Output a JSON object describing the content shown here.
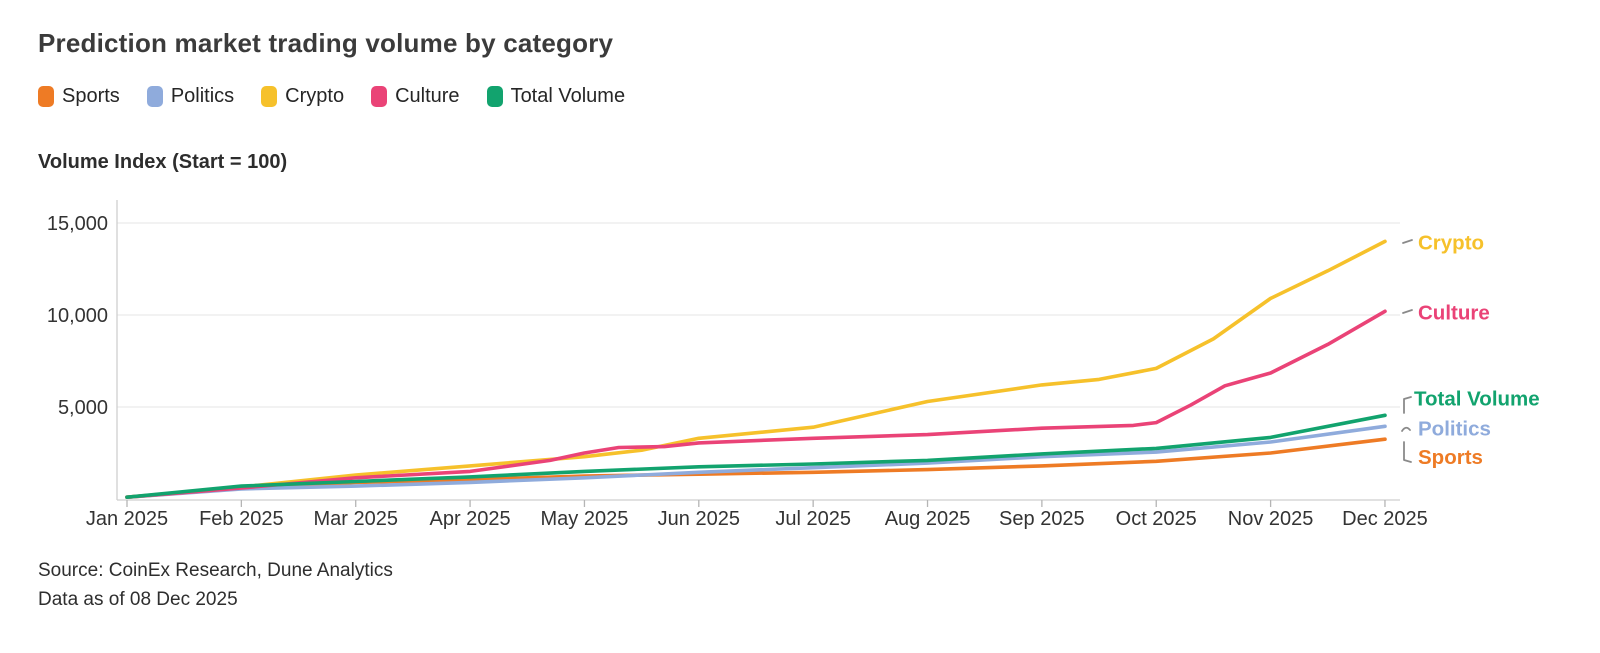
{
  "title": "Prediction market trading volume by category",
  "y_axis_title": "Volume Index (Start = 100)",
  "source": {
    "line1": "Source: CoinEx Research, Dune Analytics",
    "line2": "Data as of 08 Dec 2025"
  },
  "legend": {
    "items": [
      {
        "label": "Sports",
        "color": "#EE7B25"
      },
      {
        "label": "Politics",
        "color": "#8FABDC"
      },
      {
        "label": "Crypto",
        "color": "#F6C12B"
      },
      {
        "label": "Culture",
        "color": "#EA4377"
      },
      {
        "label": "Total Volume",
        "color": "#12A36E"
      }
    ]
  },
  "colors": {
    "sports": "#EE7B25",
    "politics": "#8FABDC",
    "crypto": "#F6C12B",
    "culture": "#EA4377",
    "total_volume": "#12A36E",
    "grid": "#e9e9e9",
    "axis": "#cfcfcf",
    "tick": "#b5b5b5",
    "tick_text": "#333333",
    "connector": "#8a8a8a"
  },
  "chart_data": {
    "type": "line",
    "title": "Prediction market trading volume by category",
    "xlabel": "",
    "ylabel": "Volume Index (Start = 100)",
    "x_categories": [
      "Jan 2025",
      "Feb 2025",
      "Mar 2025",
      "Apr 2025",
      "May 2025",
      "Jun 2025",
      "Jul 2025",
      "Aug 2025",
      "Sep 2025",
      "Oct 2025",
      "Nov 2025",
      "Dec 2025"
    ],
    "ylim": [
      0,
      16200
    ],
    "yticks": [
      {
        "value": 5000,
        "label": "5,000"
      },
      {
        "value": 10000,
        "label": "10,000"
      },
      {
        "value": 15000,
        "label": "15,000"
      }
    ],
    "grid": "horizontal",
    "legend_position": "top-left",
    "note": "x values in series points are month indices (0 = Jan 2025, 11 = Dec 2025); y values are volume index, start = 100",
    "series": [
      {
        "name": "Sports",
        "color": "#EE7B25",
        "end_label": "Sports",
        "points": [
          [
            0,
            100
          ],
          [
            1,
            600
          ],
          [
            2,
            900
          ],
          [
            3,
            1050
          ],
          [
            4,
            1250
          ],
          [
            5,
            1350
          ],
          [
            6,
            1450
          ],
          [
            7,
            1600
          ],
          [
            8,
            1800
          ],
          [
            9,
            2050
          ],
          [
            10,
            2500
          ],
          [
            11,
            3250
          ]
        ]
      },
      {
        "name": "Politics",
        "color": "#8FABDC",
        "end_label": "Politics",
        "points": [
          [
            0,
            100
          ],
          [
            1,
            550
          ],
          [
            2,
            700
          ],
          [
            3,
            900
          ],
          [
            4,
            1150
          ],
          [
            5,
            1450
          ],
          [
            6,
            1700
          ],
          [
            7,
            1950
          ],
          [
            8,
            2300
          ],
          [
            9,
            2550
          ],
          [
            10,
            3100
          ],
          [
            11,
            3950
          ]
        ]
      },
      {
        "name": "Crypto",
        "color": "#F6C12B",
        "end_label": "Crypto",
        "points": [
          [
            0,
            100
          ],
          [
            1,
            650
          ],
          [
            2,
            1300
          ],
          [
            3,
            1800
          ],
          [
            4,
            2300
          ],
          [
            4.5,
            2650
          ],
          [
            5,
            3300
          ],
          [
            6,
            3900
          ],
          [
            7,
            5300
          ],
          [
            8,
            6200
          ],
          [
            8.5,
            6500
          ],
          [
            9,
            7100
          ],
          [
            9.5,
            8700
          ],
          [
            10,
            10900
          ],
          [
            10.5,
            12400
          ],
          [
            11,
            14000
          ]
        ]
      },
      {
        "name": "Culture",
        "color": "#EA4377",
        "end_label": "Culture",
        "points": [
          [
            0,
            100
          ],
          [
            1,
            600
          ],
          [
            2,
            1150
          ],
          [
            3,
            1500
          ],
          [
            3.7,
            2100
          ],
          [
            4,
            2500
          ],
          [
            4.3,
            2800
          ],
          [
            4.7,
            2850
          ],
          [
            5,
            3050
          ],
          [
            6,
            3300
          ],
          [
            7,
            3500
          ],
          [
            8,
            3850
          ],
          [
            8.8,
            4000
          ],
          [
            9,
            4150
          ],
          [
            9.3,
            5100
          ],
          [
            9.6,
            6150
          ],
          [
            10,
            6850
          ],
          [
            10.5,
            8400
          ],
          [
            11,
            10200
          ]
        ]
      },
      {
        "name": "Total Volume",
        "color": "#12A36E",
        "end_label": "Total Volume",
        "points": [
          [
            0,
            100
          ],
          [
            1,
            700
          ],
          [
            2,
            950
          ],
          [
            3,
            1200
          ],
          [
            4,
            1500
          ],
          [
            5,
            1750
          ],
          [
            6,
            1900
          ],
          [
            7,
            2100
          ],
          [
            8,
            2450
          ],
          [
            9,
            2750
          ],
          [
            10,
            3350
          ],
          [
            11,
            4550
          ]
        ]
      }
    ]
  }
}
